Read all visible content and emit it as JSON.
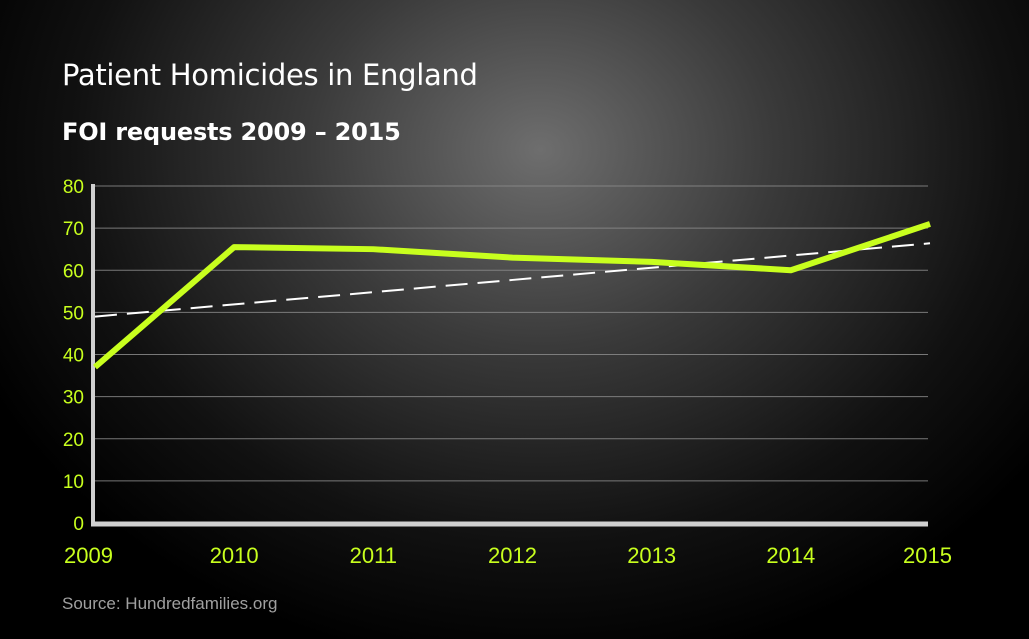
{
  "chart_data": {
    "type": "line",
    "title": "Patient Homicides in England",
    "subtitle": "FOI requests 2009 – 2015",
    "source": "Source: Hundredfamilies.org",
    "x": [
      "2009",
      "2010",
      "2011",
      "2012",
      "2013",
      "2014",
      "2015"
    ],
    "series": [
      {
        "values": [
          37,
          65.5,
          65,
          63,
          62,
          60,
          71
        ],
        "color": "#c8ff1e",
        "style": "solid"
      },
      {
        "values": [
          49,
          51.9,
          54.8,
          57.7,
          60.6,
          63.5,
          66.4
        ],
        "color": "#ffffff",
        "style": "dashed"
      }
    ],
    "ylim": [
      0,
      80
    ],
    "yticks": [
      "0",
      "10",
      "20",
      "30",
      "40",
      "50",
      "60",
      "70",
      "80"
    ],
    "grid": true,
    "colors": {
      "tick_label": "#c8ff1e",
      "grid": "#8a8a8a",
      "axis": "#d0d0d0"
    }
  }
}
